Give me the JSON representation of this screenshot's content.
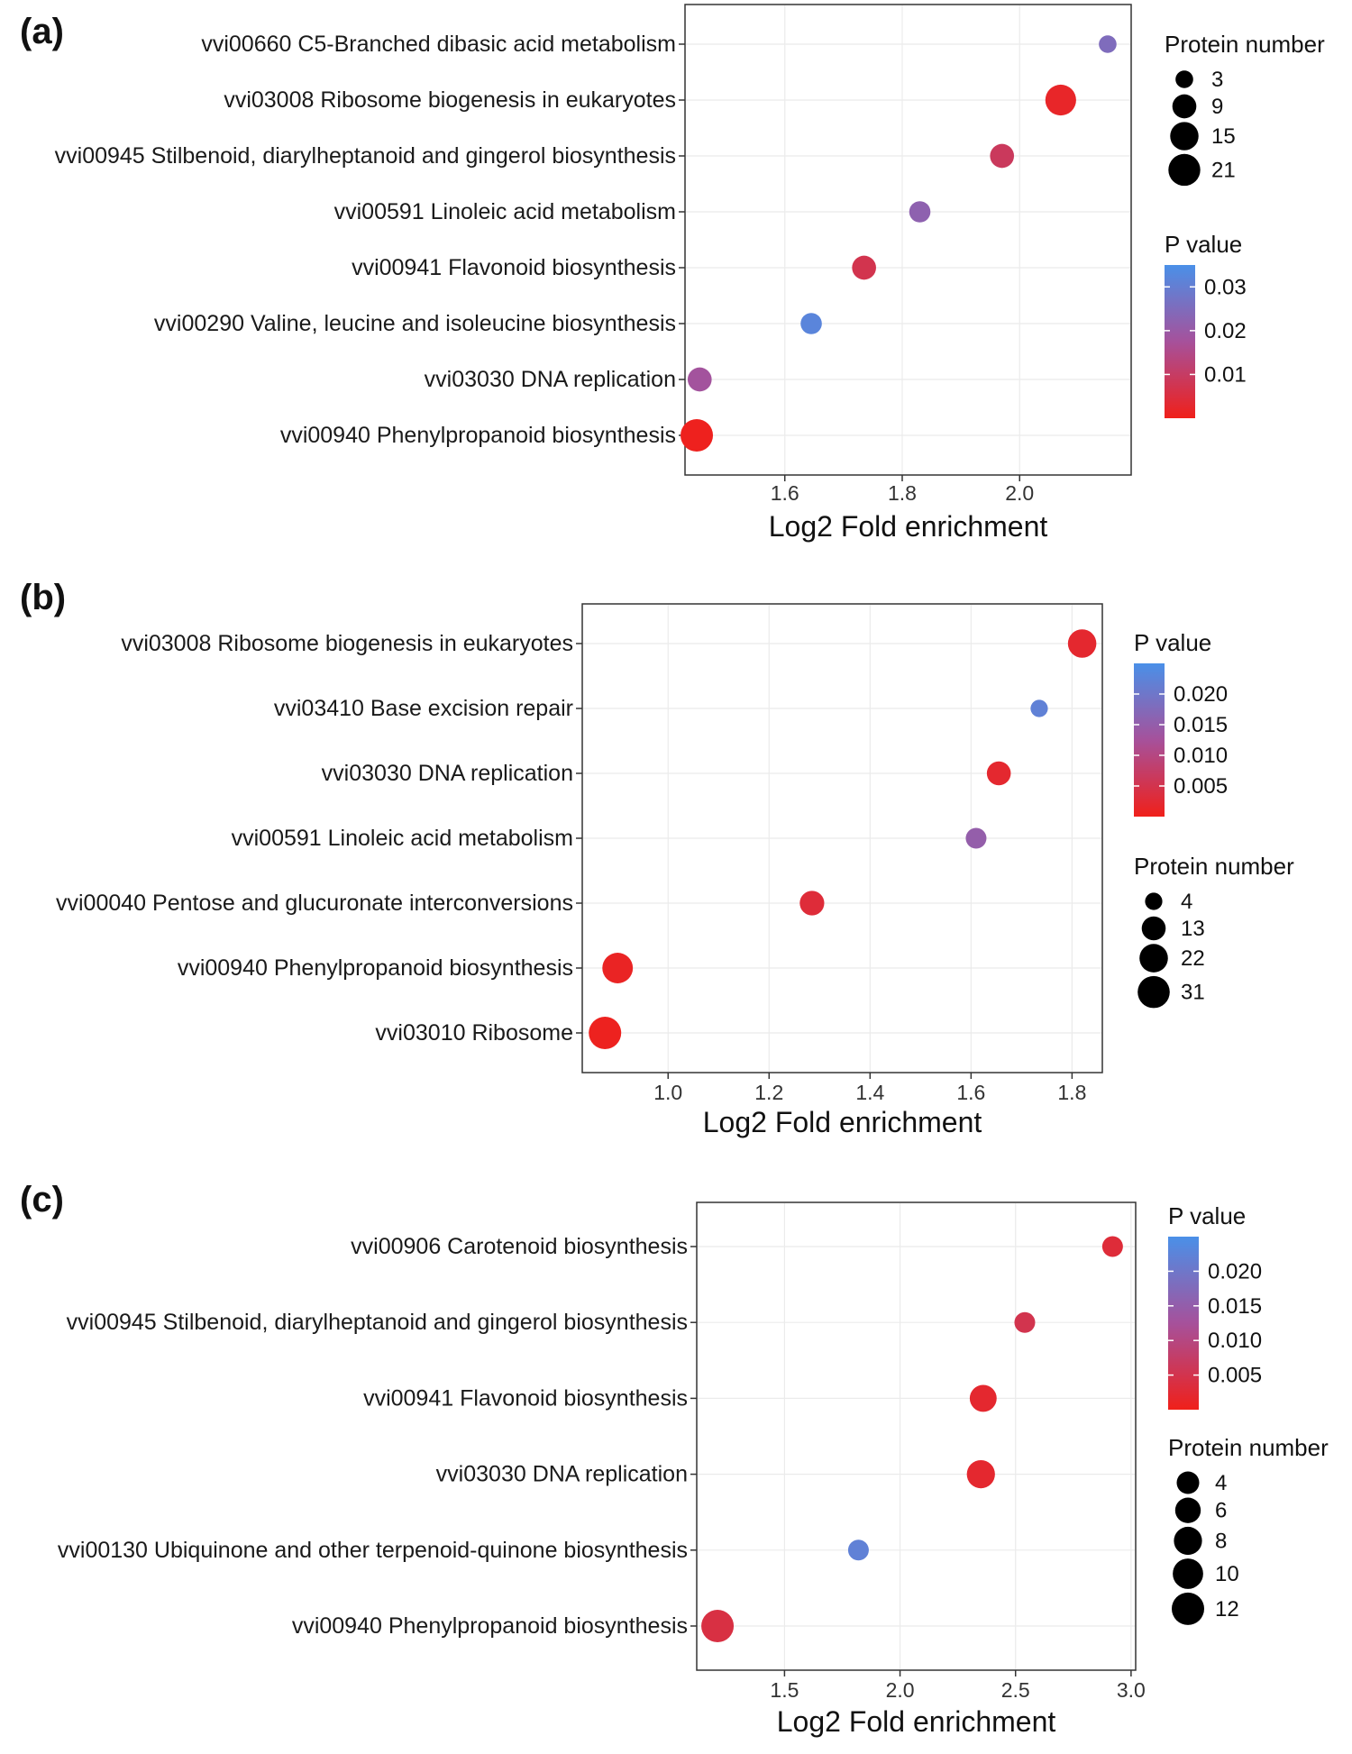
{
  "chart_data": [
    {
      "panel": "(a)",
      "type": "scatter",
      "subtype": "bubble",
      "xlabel": "Log2 Fold enrichment",
      "ylabel": "",
      "grid": true,
      "xlim": [
        1.43,
        2.19
      ],
      "xticks": [
        1.6,
        1.8,
        2.0
      ],
      "xtick_labels": [
        "1.6",
        "1.8",
        "2.0"
      ],
      "legend_order": [
        "size",
        "color"
      ],
      "size_legend": {
        "title": "Protein number",
        "values": [
          3,
          9,
          15,
          21
        ],
        "labels": [
          "3",
          "9",
          "15",
          "21"
        ]
      },
      "color_legend": {
        "title": "P value",
        "range": [
          0.0,
          0.035
        ],
        "ticks": [
          0.03,
          0.02,
          0.01
        ],
        "tick_labels": [
          "0.03",
          "0.02",
          "0.01"
        ],
        "low_color": "#f0201a",
        "mid_color": "#a6519b",
        "high_color": "#4a90e8"
      },
      "points": [
        {
          "category": "vvi00660 C5-Branched dibasic acid metabolism",
          "x": 2.15,
          "size": 3,
          "p": 0.025
        },
        {
          "category": "vvi03008 Ribosome biogenesis in eukaryotes",
          "x": 2.07,
          "size": 19,
          "p": 0.002
        },
        {
          "category": "vvi00945 Stilbenoid, diarylheptanoid and gingerol biosynthesis",
          "x": 1.97,
          "size": 9,
          "p": 0.009
        },
        {
          "category": "vvi00591 Linoleic acid metabolism",
          "x": 1.83,
          "size": 6,
          "p": 0.022
        },
        {
          "category": "vvi00941 Flavonoid biosynthesis",
          "x": 1.735,
          "size": 9,
          "p": 0.007
        },
        {
          "category": "vvi00290 Valine, leucine and isoleucine biosynthesis",
          "x": 1.645,
          "size": 6,
          "p": 0.032
        },
        {
          "category": "vvi03030 DNA replication",
          "x": 1.455,
          "size": 9,
          "p": 0.018
        },
        {
          "category": "vvi00940 Phenylpropanoid biosynthesis",
          "x": 1.45,
          "size": 22,
          "p": 0.0005
        }
      ]
    },
    {
      "panel": "(b)",
      "type": "scatter",
      "subtype": "bubble",
      "xlabel": "Log2 Fold enrichment",
      "ylabel": "",
      "grid": true,
      "xlim": [
        0.83,
        1.86
      ],
      "xticks": [
        1.0,
        1.2,
        1.4,
        1.6,
        1.8
      ],
      "xtick_labels": [
        "1.0",
        "1.2",
        "1.4",
        "1.6",
        "1.8"
      ],
      "legend_order": [
        "color",
        "size"
      ],
      "size_legend": {
        "title": "Protein number",
        "values": [
          4,
          13,
          22,
          31
        ],
        "labels": [
          "4",
          "13",
          "22",
          "31"
        ]
      },
      "color_legend": {
        "title": "P value",
        "range": [
          0.0,
          0.025
        ],
        "ticks": [
          0.02,
          0.015,
          0.01,
          0.005
        ],
        "tick_labels": [
          "0.020",
          "0.015",
          "0.010",
          "0.005"
        ],
        "low_color": "#f0201a",
        "mid_color": "#a6519b",
        "high_color": "#4a90e8"
      },
      "points": [
        {
          "category": "vvi03008 Ribosome biogenesis in eukaryotes",
          "x": 1.82,
          "size": 22,
          "p": 0.002
        },
        {
          "category": "vvi03410 Base excision repair",
          "x": 1.735,
          "size": 4,
          "p": 0.022
        },
        {
          "category": "vvi03030 DNA replication",
          "x": 1.655,
          "size": 13,
          "p": 0.002
        },
        {
          "category": "vvi00591 Linoleic acid metabolism",
          "x": 1.61,
          "size": 8,
          "p": 0.015
        },
        {
          "category": "vvi00040 Pentose and glucuronate interconversions",
          "x": 1.285,
          "size": 14,
          "p": 0.003
        },
        {
          "category": "vvi00940 Phenylpropanoid biosynthesis",
          "x": 0.9,
          "size": 27,
          "p": 0.001
        },
        {
          "category": "vvi03010 Ribosome",
          "x": 0.875,
          "size": 32,
          "p": 0.0005
        }
      ]
    },
    {
      "panel": "(c)",
      "type": "scatter",
      "subtype": "bubble",
      "xlabel": "Log2 Fold enrichment",
      "ylabel": "",
      "grid": true,
      "xlim": [
        1.12,
        3.02
      ],
      "xticks": [
        1.5,
        2.0,
        2.5,
        3.0
      ],
      "xtick_labels": [
        "1.5",
        "2.0",
        "2.5",
        "3.0"
      ],
      "legend_order": [
        "color",
        "size"
      ],
      "size_legend": {
        "title": "Protein number",
        "values": [
          4,
          6,
          8,
          10,
          12
        ],
        "labels": [
          "4",
          "6",
          "8",
          "10",
          "12"
        ]
      },
      "color_legend": {
        "title": "P value",
        "range": [
          0.0,
          0.025
        ],
        "ticks": [
          0.02,
          0.015,
          0.01,
          0.005
        ],
        "tick_labels": [
          "0.020",
          "0.015",
          "0.010",
          "0.005"
        ],
        "low_color": "#f0201a",
        "mid_color": "#a6519b",
        "high_color": "#4a90e8"
      },
      "points": [
        {
          "category": "vvi00906 Carotenoid biosynthesis",
          "x": 2.92,
          "size": 3,
          "p": 0.003
        },
        {
          "category": "vvi00945 Stilbenoid, diarylheptanoid and gingerol biosynthesis",
          "x": 2.54,
          "size": 3,
          "p": 0.005
        },
        {
          "category": "vvi00941 Flavonoid biosynthesis",
          "x": 2.36,
          "size": 7,
          "p": 0.002
        },
        {
          "category": "vvi03030 DNA replication",
          "x": 2.35,
          "size": 8,
          "p": 0.002
        },
        {
          "category": "vvi00130 Ubiquinone and other terpenoid-quinone biosynthesis",
          "x": 1.82,
          "size": 3,
          "p": 0.022
        },
        {
          "category": "vvi00940 Phenylpropanoid biosynthesis",
          "x": 1.21,
          "size": 12,
          "p": 0.004
        }
      ]
    }
  ]
}
